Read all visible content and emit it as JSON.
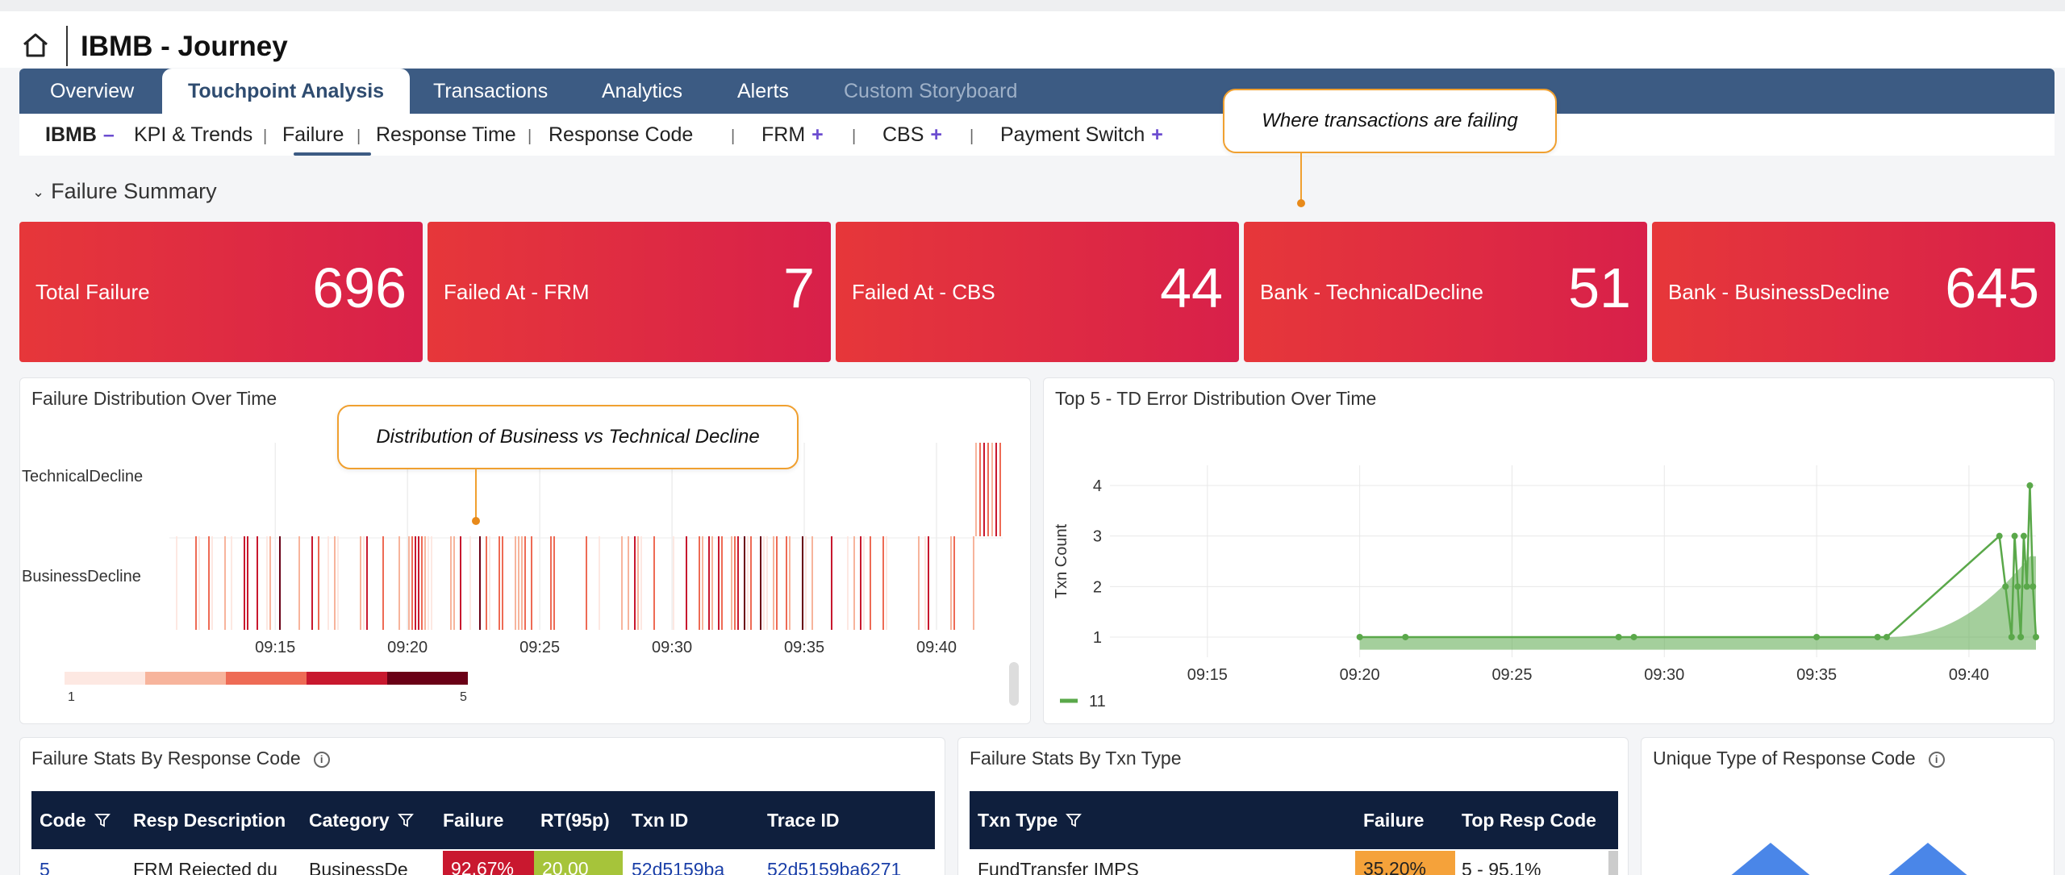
{
  "app": {
    "title": "IBMB - Journey",
    "home_icon": "home-icon"
  },
  "tabs": [
    {
      "label": "Overview"
    },
    {
      "label": "Touchpoint Analysis",
      "active": true
    },
    {
      "label": "Transactions"
    },
    {
      "label": "Analytics"
    },
    {
      "label": "Alerts"
    },
    {
      "label": "Custom Storyboard",
      "disabled": true
    }
  ],
  "subnav": {
    "group": "IBMB",
    "group_toggle": "–",
    "items": [
      "KPI & Trends",
      "Failure",
      "Response Time",
      "Response Code",
      "FRM",
      "CBS",
      "Payment Switch"
    ],
    "active": "Failure",
    "separator": "|",
    "plus": "+"
  },
  "callouts": {
    "failing": "Where transactions are failing",
    "distribution": "Distribution of Business vs Technical Decline"
  },
  "section": {
    "title": "Failure Summary"
  },
  "kpis": [
    {
      "label": "Total Failure",
      "value": "696"
    },
    {
      "label": "Failed At - FRM",
      "value": "7"
    },
    {
      "label": "Failed At - CBS",
      "value": "44"
    },
    {
      "label": "Bank - TechnicalDecline",
      "value": "51"
    },
    {
      "label": "Bank - BusinessDecline",
      "value": "645"
    }
  ],
  "panels": {
    "failure_dist": {
      "title": "Failure Distribution Over Time"
    },
    "td_error": {
      "title": "Top 5 - TD Error Distribution Over Time"
    },
    "resp_code": {
      "title": "Failure Stats By Response Code"
    },
    "txn_type": {
      "title": "Failure Stats By Txn Type"
    },
    "unique_type": {
      "title": "Unique Type of Response Code"
    }
  },
  "chart_data": [
    {
      "type": "heatmap",
      "title": "Failure Distribution Over Time",
      "rows": [
        "TechnicalDecline",
        "BusinessDecline"
      ],
      "x_ticks": [
        "09:15",
        "09:20",
        "09:25",
        "09:30",
        "09:35",
        "09:40"
      ],
      "color_scale": {
        "min": 1,
        "max": 5,
        "colors": [
          "#fde8e2",
          "#f7b49c",
          "#ee6b55",
          "#c8182e",
          "#6a0016"
        ]
      },
      "legend_min_label": "1",
      "legend_max_label": "5"
    },
    {
      "type": "area",
      "title": "Top 5 - TD Error Distribution Over Time",
      "ylabel": "Txn Count",
      "y_ticks": [
        1,
        2,
        3,
        4
      ],
      "x_ticks": [
        "09:15",
        "09:20",
        "09:25",
        "09:30",
        "09:35",
        "09:40"
      ],
      "ylim": [
        0.6,
        4.4
      ],
      "color": "#5aa84a",
      "series": [
        {
          "name": "11",
          "points": [
            [
              "09:20",
              1
            ],
            [
              "09:21.5",
              1
            ],
            [
              "09:28.5",
              1
            ],
            [
              "09:29",
              1
            ],
            [
              "09:35",
              1
            ],
            [
              "09:37",
              1
            ],
            [
              "09:37.3",
              1
            ],
            [
              "09:41",
              3
            ],
            [
              "09:41.2",
              2
            ],
            [
              "09:41.4",
              1
            ],
            [
              "09:41.5",
              3
            ],
            [
              "09:41.6",
              2
            ],
            [
              "09:41.7",
              1
            ],
            [
              "09:41.8",
              3
            ],
            [
              "09:41.9",
              2
            ],
            [
              "09:42",
              4
            ],
            [
              "09:42.1",
              2
            ],
            [
              "09:42.2",
              1
            ]
          ]
        }
      ]
    }
  ],
  "resp_table": {
    "columns": [
      "Code",
      "Resp Description",
      "Category",
      "Failure",
      "RT(95p)",
      "Txn ID",
      "Trace ID"
    ],
    "rows": [
      {
        "code": "5",
        "desc": "FRM Rejected du",
        "category": "BusinessDe",
        "failure": "92.67%",
        "rt": "20.00",
        "txn": "52d5159ba",
        "trace": "52d5159ba6271"
      }
    ]
  },
  "txn_table": {
    "columns": [
      "Txn Type",
      "Failure",
      "Top Resp Code"
    ],
    "rows": [
      {
        "type": "FundTransfer IMPS",
        "failure": "35.20%",
        "top": "5 - 95.1%"
      }
    ]
  }
}
